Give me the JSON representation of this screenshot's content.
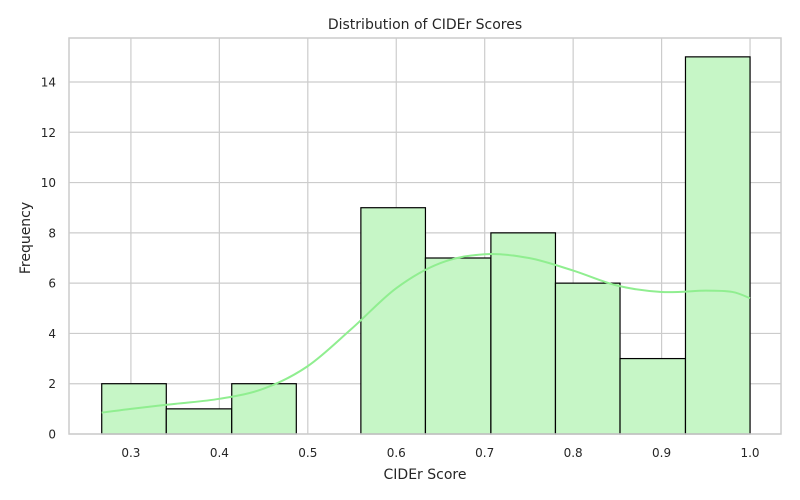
{
  "chart_data": {
    "type": "bar",
    "title": "Distribution of CIDEr Scores",
    "xlabel": "CIDEr Score",
    "ylabel": "Frequency",
    "xlim": [
      0.23,
      1.035
    ],
    "ylim": [
      0,
      15.75
    ],
    "xticks": [
      0.3,
      0.4,
      0.5,
      0.6,
      0.7,
      0.8,
      0.9,
      1.0
    ],
    "xtick_labels": [
      "0.3",
      "0.4",
      "0.5",
      "0.6",
      "0.7",
      "0.8",
      "0.9",
      "1.0"
    ],
    "yticks": [
      0,
      2,
      4,
      6,
      8,
      10,
      12,
      14
    ],
    "ytick_labels": [
      "0",
      "2",
      "4",
      "6",
      "8",
      "10",
      "12",
      "14"
    ],
    "grid": true,
    "bins": [
      {
        "start": 0.267,
        "end": 0.34,
        "count": 2
      },
      {
        "start": 0.34,
        "end": 0.414,
        "count": 1
      },
      {
        "start": 0.414,
        "end": 0.487,
        "count": 2
      },
      {
        "start": 0.487,
        "end": 0.56,
        "count": 0
      },
      {
        "start": 0.56,
        "end": 0.633,
        "count": 9
      },
      {
        "start": 0.633,
        "end": 0.707,
        "count": 7
      },
      {
        "start": 0.707,
        "end": 0.78,
        "count": 8
      },
      {
        "start": 0.78,
        "end": 0.853,
        "count": 6
      },
      {
        "start": 0.853,
        "end": 0.927,
        "count": 3
      },
      {
        "start": 0.927,
        "end": 1.0,
        "count": 15
      }
    ],
    "kde": {
      "x": [
        0.267,
        0.3,
        0.35,
        0.4,
        0.45,
        0.5,
        0.55,
        0.6,
        0.65,
        0.7,
        0.75,
        0.8,
        0.85,
        0.9,
        0.95,
        0.98,
        1.0
      ],
      "y": [
        0.85,
        1.0,
        1.2,
        1.4,
        1.8,
        2.7,
        4.2,
        5.8,
        6.8,
        7.15,
        7.0,
        6.5,
        5.9,
        5.65,
        5.7,
        5.65,
        5.4
      ]
    },
    "colors": {
      "bar_fill": "#c6f6c6",
      "bar_edge": "#000000",
      "kde_line": "#90ee90",
      "grid": "#cccccc"
    }
  }
}
